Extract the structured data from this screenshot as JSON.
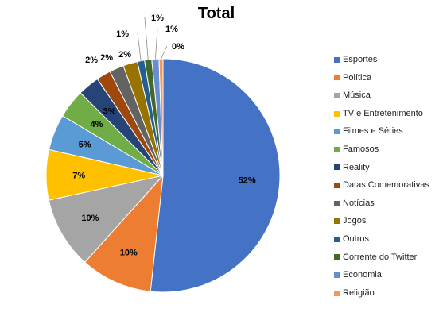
{
  "chart_data": {
    "type": "pie",
    "title": "Total",
    "categories": [
      "Esportes",
      "Política",
      "Música",
      "TV e Entretenimento",
      "Filmes e Séries",
      "Famosos",
      "Reality",
      "Datas Comemorativas",
      "Notícias",
      "Jogos",
      "Outros",
      "Corrente do Twitter",
      "Economia",
      "Religião"
    ],
    "values": [
      52,
      10,
      10,
      7,
      5,
      4,
      3,
      2,
      2,
      2,
      1,
      1,
      1,
      0
    ],
    "value_labels": [
      "52%",
      "10%",
      "10%",
      "7%",
      "5%",
      "4%",
      "3%",
      "2%",
      "2%",
      "2%",
      "1%",
      "1%",
      "1%",
      "0%"
    ],
    "colors": [
      "#4472C4",
      "#ED7D31",
      "#A5A5A5",
      "#FFC000",
      "#5B9BD5",
      "#70AD47",
      "#264478",
      "#9E480E",
      "#636363",
      "#997300",
      "#255E91",
      "#43682B",
      "#698ED0",
      "#F1975A"
    ],
    "legend_position": "right"
  }
}
